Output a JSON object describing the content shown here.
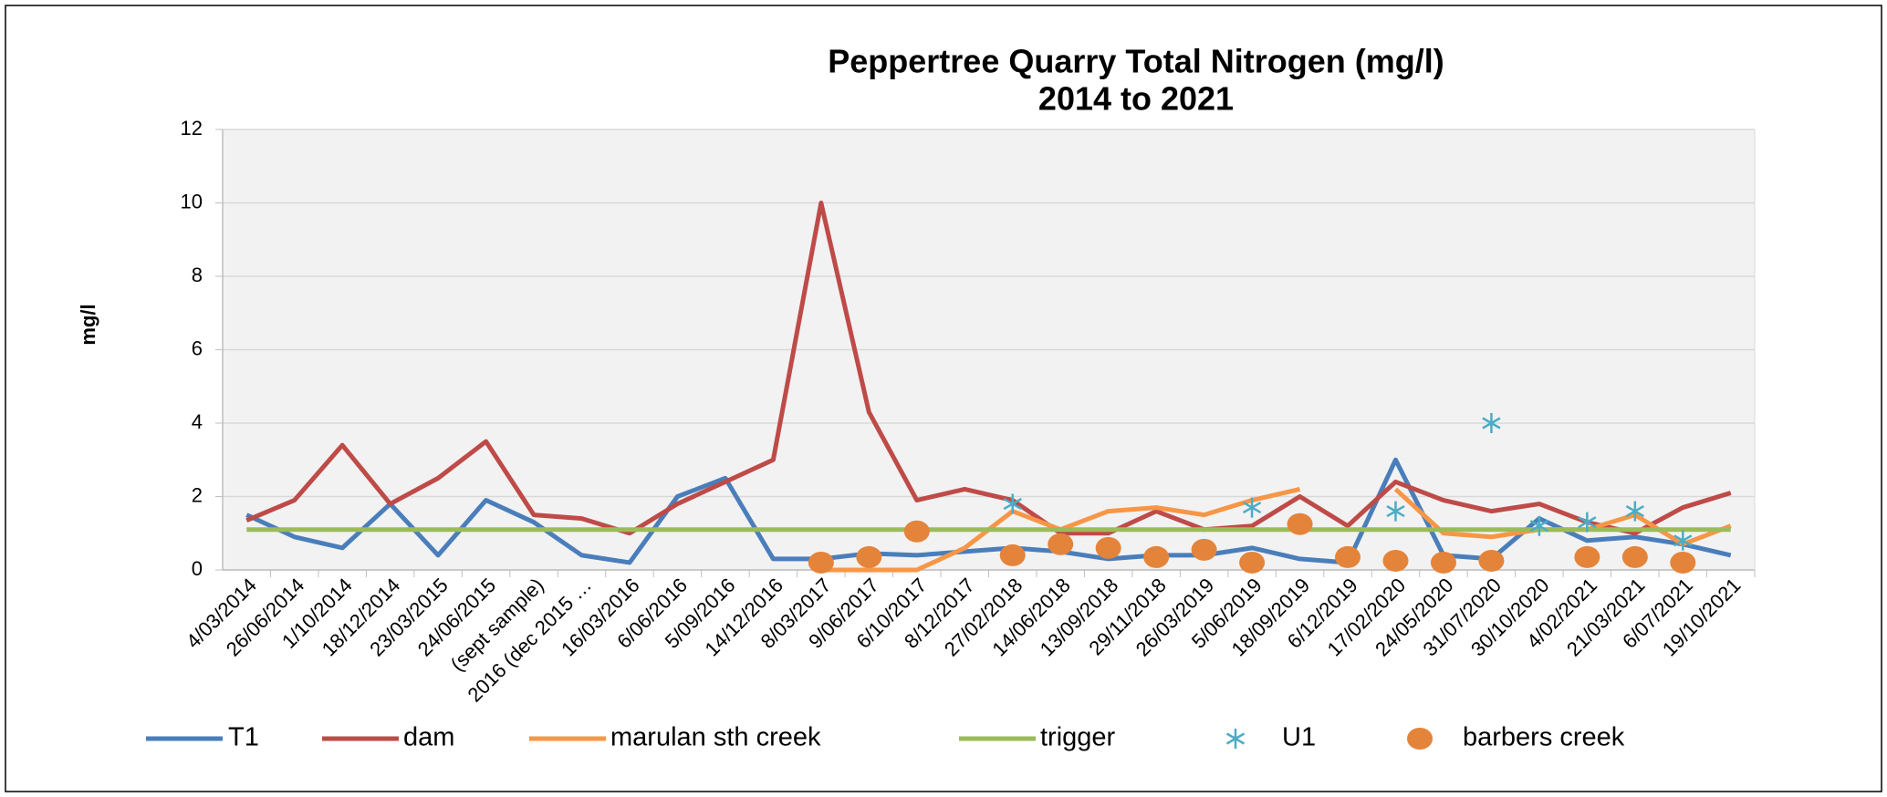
{
  "chart_data": {
    "type": "line",
    "title": [
      "Peppertree Quarry Total Nitrogen  (mg/l)",
      "2014 to 2021"
    ],
    "y_label": "mg/l",
    "categories": [
      "4/03/2014",
      "26/06/2014",
      "1/10/2014",
      "18/12/2014",
      "23/03/2015",
      "24/06/2015",
      "(sept sample)",
      "2016 (dec 2015 …",
      "16/03/2016",
      "6/06/2016",
      "5/09/2016",
      "14/12/2016",
      "8/03/2017",
      "9/06/2017",
      "6/10/2017",
      "8/12/2017",
      "27/02/2018",
      "14/06/2018",
      "13/09/2018",
      "29/11/2018",
      "26/03/2019",
      "5/06/2019",
      "18/09/2019",
      "6/12/2019",
      "17/02/2020",
      "24/05/2020",
      "31/07/2020",
      "30/10/2020",
      "4/02/2021",
      "21/03/2021",
      "6/07/2021",
      "19/10/2021"
    ],
    "ylim": [
      0,
      12
    ],
    "yticks": [
      0,
      2,
      4,
      6,
      8,
      10,
      12
    ],
    "grid": true,
    "legend": "bottom",
    "series": [
      {
        "name": "T1",
        "color": "#4a7ebb",
        "marker": "line",
        "values": [
          1.5,
          0.9,
          0.6,
          1.8,
          0.4,
          1.9,
          1.3,
          0.4,
          0.2,
          2.0,
          2.5,
          0.3,
          0.3,
          0.45,
          0.4,
          0.5,
          0.6,
          0.5,
          0.3,
          0.4,
          0.4,
          0.6,
          0.3,
          0.2,
          3.0,
          0.4,
          0.3,
          1.4,
          0.8,
          0.9,
          0.7,
          0.4
        ]
      },
      {
        "name": "dam",
        "color": "#be4b48",
        "marker": "line",
        "values": [
          1.35,
          1.9,
          3.4,
          1.8,
          2.5,
          3.5,
          1.5,
          1.4,
          1.0,
          1.8,
          2.4,
          3.0,
          10.0,
          4.3,
          1.9,
          2.2,
          1.9,
          1.0,
          1.0,
          1.6,
          1.1,
          1.2,
          2.0,
          1.2,
          2.4,
          1.9,
          1.6,
          1.8,
          1.3,
          1.0,
          1.7,
          2.1
        ]
      },
      {
        "name": "marulan sth creek",
        "color": "#f79646",
        "marker": "line",
        "values": [
          null,
          null,
          null,
          null,
          null,
          null,
          null,
          null,
          null,
          null,
          null,
          null,
          0.0,
          0.0,
          0.0,
          0.6,
          1.6,
          1.1,
          1.6,
          1.7,
          1.5,
          1.9,
          2.2,
          null,
          2.2,
          1.0,
          0.9,
          1.1,
          1.1,
          1.5,
          0.7,
          1.2
        ]
      },
      {
        "name": "trigger",
        "color": "#9bbb59",
        "marker": "line",
        "values": [
          1.1,
          1.1,
          1.1,
          1.1,
          1.1,
          1.1,
          1.1,
          1.1,
          1.1,
          1.1,
          1.1,
          1.1,
          1.1,
          1.1,
          1.1,
          1.1,
          1.1,
          1.1,
          1.1,
          1.1,
          1.1,
          1.1,
          1.1,
          1.1,
          1.1,
          1.1,
          1.1,
          1.1,
          1.1,
          1.1,
          1.1,
          1.1
        ]
      },
      {
        "name": "U1",
        "color": "#4bacc6",
        "marker": "star",
        "values": [
          null,
          null,
          null,
          null,
          null,
          null,
          null,
          null,
          null,
          null,
          null,
          null,
          null,
          null,
          null,
          null,
          1.8,
          null,
          null,
          null,
          null,
          1.7,
          null,
          null,
          1.6,
          null,
          4.0,
          1.2,
          1.3,
          1.6,
          0.8,
          null
        ]
      },
      {
        "name": "barbers creek",
        "color": "#e4843a",
        "marker": "circle",
        "values": [
          null,
          null,
          null,
          null,
          null,
          null,
          null,
          null,
          null,
          null,
          null,
          null,
          0.2,
          0.35,
          1.05,
          null,
          0.4,
          0.7,
          0.6,
          0.35,
          0.55,
          0.2,
          1.25,
          0.35,
          0.25,
          0.2,
          0.25,
          null,
          0.35,
          0.35,
          0.2,
          null
        ]
      }
    ]
  }
}
